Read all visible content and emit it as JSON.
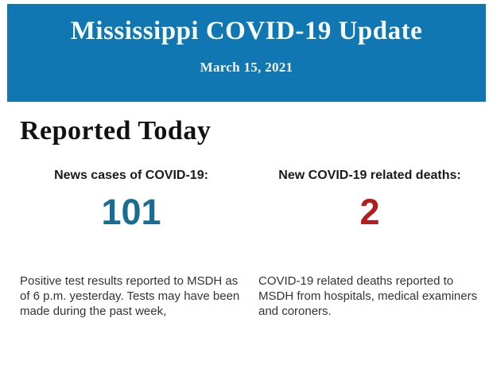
{
  "banner": {
    "title": "Mississippi COVID-19 Update",
    "date": "March 15, 2021",
    "bg_color": "#1077b2"
  },
  "section": {
    "heading": "Reported Today"
  },
  "stats": [
    {
      "label": "News cases of COVID-19:",
      "value": "101",
      "value_color": "#1a6c92",
      "paragraph_lines": [
        "Positive test results reported to MSDH as",
        "of 6 p.m. yesterday. Tests may have been",
        "made during the past week,"
      ]
    },
    {
      "label": "New COVID-19 related deaths:",
      "value": "2",
      "value_color": "#b21d20",
      "paragraph_lines": [
        "COVID-19 related deaths reported to",
        "MSDH from hospitals, medical examiners",
        "and coroners."
      ]
    }
  ]
}
